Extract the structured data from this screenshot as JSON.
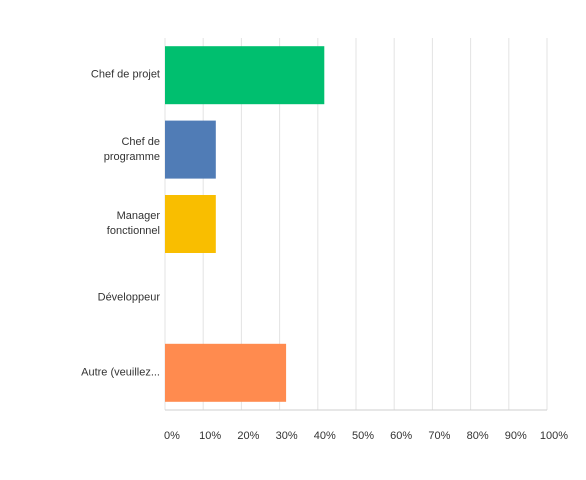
{
  "chart_data": {
    "type": "bar",
    "orientation": "horizontal",
    "categories": [
      "Chef de projet",
      "Chef de programme",
      "Manager fonctionnel",
      "Développeur",
      "Autre (veuillez..."
    ],
    "values": [
      41.7,
      13.3,
      13.3,
      0,
      31.7
    ],
    "colors": [
      "#00bf6f",
      "#507cb6",
      "#f9be00",
      "#6bc8cd",
      "#ff8b4f"
    ],
    "xlim": [
      0,
      100
    ],
    "xticks": [
      {
        "value": 0,
        "label": "0%"
      },
      {
        "value": 10,
        "label": "10%"
      },
      {
        "value": 20,
        "label": "20%"
      },
      {
        "value": 30,
        "label": "30%"
      },
      {
        "value": 40,
        "label": "40%"
      },
      {
        "value": 50,
        "label": "50%"
      },
      {
        "value": 60,
        "label": "60%"
      },
      {
        "value": 70,
        "label": "70%"
      },
      {
        "value": 80,
        "label": "80%"
      },
      {
        "value": 90,
        "label": "90%"
      },
      {
        "value": 100,
        "label": "100%"
      }
    ],
    "grid": true
  }
}
